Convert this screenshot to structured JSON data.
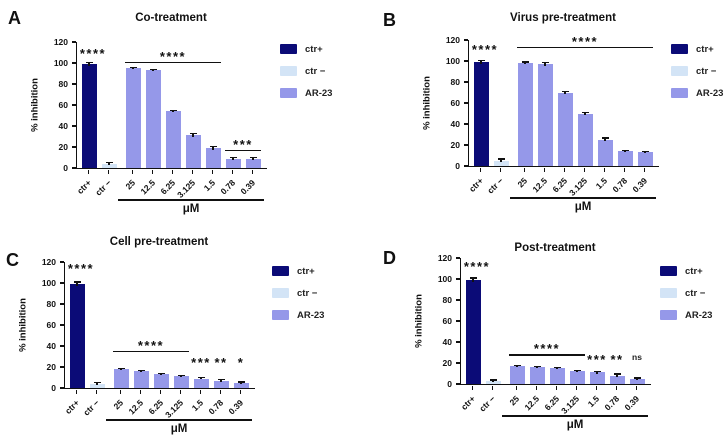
{
  "figure": {
    "background": "#ffffff",
    "y_axis": {
      "label": "% inhibition",
      "ticks": [
        0,
        20,
        40,
        60,
        80,
        100,
        120
      ],
      "max": 120
    },
    "x_axis": {
      "unit_label": "μM"
    },
    "categories": [
      "ctr+",
      "ctr −",
      "25",
      "12.5",
      "6.25",
      "3.125",
      "1.5",
      "0.78",
      "0.39"
    ],
    "legend": {
      "items": [
        {
          "label": "ctr+",
          "color": "#0b0b77"
        },
        {
          "label": "ctr −",
          "color": "#d3e4f6"
        },
        {
          "label": "AR-23",
          "color": "#9598e9"
        }
      ]
    },
    "colors": {
      "ctr_plus": "#0b0b77",
      "ctr_minus": "#d3e4f6",
      "ar23": "#9598e9",
      "axis": "#111111",
      "error_bar": "#111111"
    }
  },
  "chart_data": [
    {
      "type": "bar",
      "panel_letter": "A",
      "title": "Co-treatment",
      "xlabel": "μM",
      "ylabel": "% inhibition",
      "ylim": [
        0,
        120
      ],
      "categories": [
        "ctr+",
        "ctr −",
        "25",
        "12.5",
        "6.25",
        "3.125",
        "1.5",
        "0.78",
        "0.39"
      ],
      "values": [
        99,
        4,
        95,
        93,
        54,
        31,
        19,
        9,
        9
      ],
      "errors": [
        1.5,
        1.5,
        1,
        1,
        1,
        1.5,
        1.5,
        1,
        1
      ],
      "annotations": [
        {
          "kind": "stars",
          "text": "****",
          "category": "ctr+",
          "y": 105
        },
        {
          "kind": "bracket",
          "text": "****",
          "from": "25",
          "to": "1.5",
          "y": 100
        },
        {
          "kind": "bracket",
          "text": "***",
          "from": "0.78",
          "to": "0.39",
          "y": 16
        }
      ]
    },
    {
      "type": "bar",
      "panel_letter": "B",
      "title": "Virus pre-treatment",
      "xlabel": "μM",
      "ylabel": "% inhibition",
      "ylim": [
        0,
        120
      ],
      "categories": [
        "ctr+",
        "ctr −",
        "25",
        "12.5",
        "6.25",
        "3.125",
        "1.5",
        "0.78",
        "0.39"
      ],
      "values": [
        99,
        5,
        98,
        97,
        70,
        50,
        25,
        14,
        13
      ],
      "errors": [
        1.5,
        1.5,
        1,
        1.5,
        1,
        1,
        1.5,
        1,
        1
      ],
      "annotations": [
        {
          "kind": "stars",
          "text": "****",
          "category": "ctr+",
          "y": 107
        },
        {
          "kind": "bracket",
          "text": "****",
          "from": "25",
          "to": "0.39",
          "y": 112
        }
      ]
    },
    {
      "type": "bar",
      "panel_letter": "C",
      "title": "Cell pre-treatment",
      "xlabel": "μM",
      "ylabel": "% inhibition",
      "ylim": [
        0,
        120
      ],
      "categories": [
        "ctr+",
        "ctr −",
        "25",
        "12.5",
        "6.25",
        "3.125",
        "1.5",
        "0.78",
        "0.39"
      ],
      "values": [
        99,
        4,
        18,
        16,
        13,
        11,
        9,
        7,
        5
      ],
      "errors": [
        2,
        1,
        0.8,
        0.8,
        0.8,
        0.8,
        0.8,
        1,
        0.8
      ],
      "annotations": [
        {
          "kind": "stars",
          "text": "****",
          "category": "ctr+",
          "y": 110
        },
        {
          "kind": "bracket",
          "text": "****",
          "from": "25",
          "to": "3.125",
          "y": 34
        },
        {
          "kind": "stars",
          "text": "***",
          "category": "1.5",
          "y": 20
        },
        {
          "kind": "stars",
          "text": "**",
          "category": "0.78",
          "y": 20
        },
        {
          "kind": "stars",
          "text": "*",
          "category": "0.39",
          "y": 20
        }
      ]
    },
    {
      "type": "bar",
      "panel_letter": "D",
      "title": "Post-treatment",
      "xlabel": "μM",
      "ylabel": "% inhibition",
      "ylim": [
        0,
        120
      ],
      "categories": [
        "ctr+",
        "ctr −",
        "25",
        "12.5",
        "6.25",
        "3.125",
        "1.5",
        "0.78",
        "0.39"
      ],
      "values": [
        99,
        3,
        17,
        16,
        15,
        12,
        11,
        8,
        5
      ],
      "errors": [
        2,
        0.8,
        0.8,
        0.8,
        0.8,
        1,
        1,
        1.5,
        0.8
      ],
      "annotations": [
        {
          "kind": "stars",
          "text": "****",
          "category": "ctr+",
          "y": 108
        },
        {
          "kind": "bracket",
          "text": "****",
          "from": "25",
          "to": "3.125",
          "y": 27
        },
        {
          "kind": "stars",
          "text": "***",
          "category": "1.5",
          "y": 19
        },
        {
          "kind": "stars",
          "text": "**",
          "category": "0.78",
          "y": 19
        },
        {
          "kind": "text",
          "text": "ns",
          "category": "0.39",
          "y": 21
        }
      ]
    }
  ]
}
